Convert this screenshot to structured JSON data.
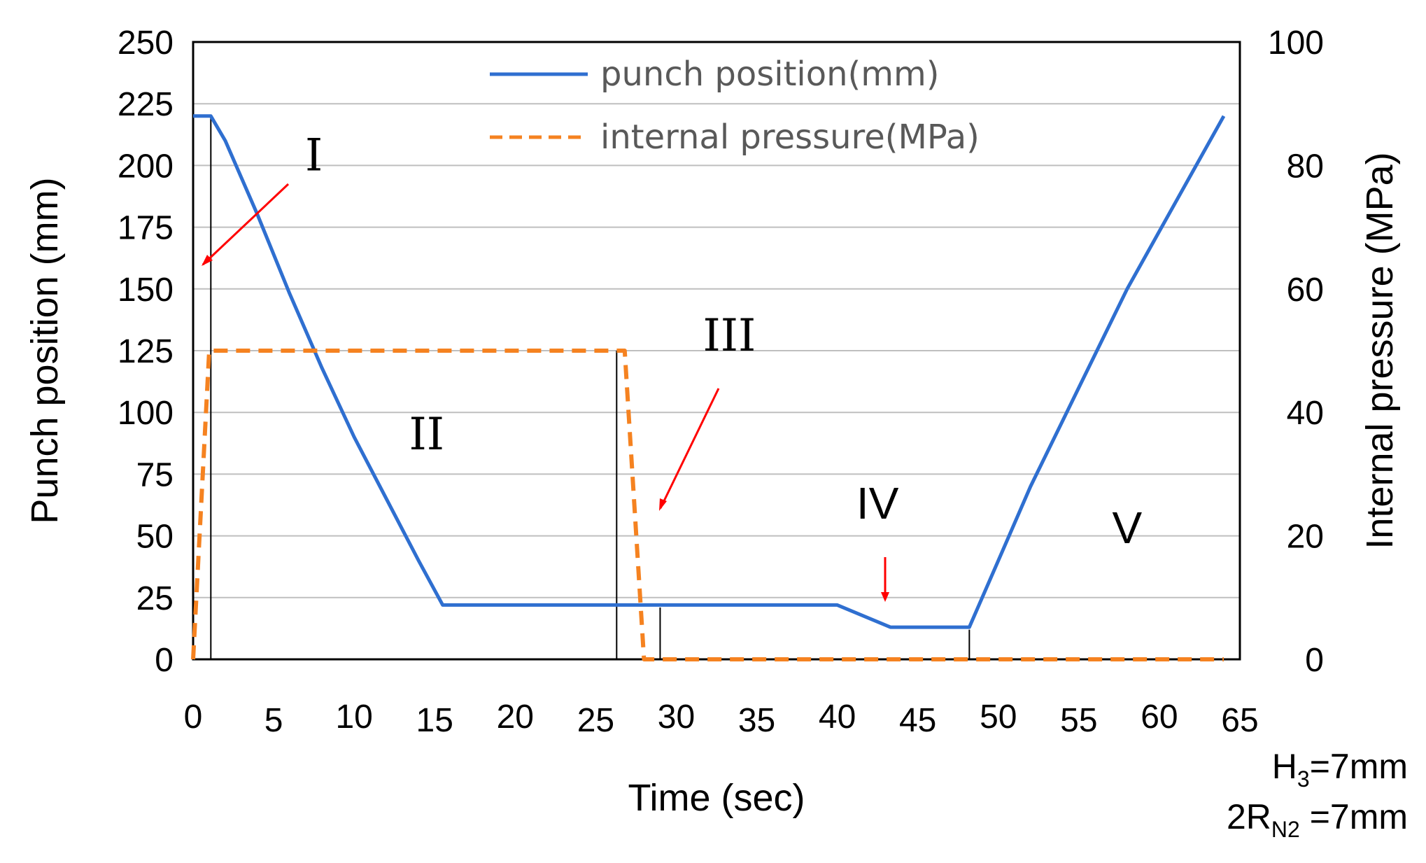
{
  "chart_data": {
    "type": "line",
    "title": "",
    "xlabel": "Time (sec)",
    "ylabel": "Punch position (mm)",
    "y2label": "Internal pressure (MPa)",
    "xlim": [
      0,
      65
    ],
    "ylim": [
      0,
      250
    ],
    "y2lim": [
      0,
      100
    ],
    "xticks": [
      "0",
      "5",
      "10",
      "15",
      "20",
      "25",
      "30",
      "35",
      "40",
      "45",
      "50",
      "55",
      "60",
      "65"
    ],
    "yticks": [
      "0",
      "25",
      "50",
      "75",
      "100",
      "125",
      "150",
      "175",
      "200",
      "225",
      "250"
    ],
    "y2ticks": [
      "0",
      "20",
      "40",
      "60",
      "80",
      "100"
    ],
    "grid": true,
    "legend_position": "top-center",
    "series": [
      {
        "name": "punch position(mm)",
        "axis": "left",
        "style": "solid",
        "color": "#2F6FD0",
        "x": [
          0,
          1.1,
          2,
          4,
          6,
          8,
          10,
          12,
          14,
          15.5,
          16.3,
          20,
          25,
          30,
          35,
          40,
          43.3,
          46,
          48.2,
          50,
          52,
          55,
          58,
          61,
          64
        ],
        "y": [
          220,
          220,
          210,
          180,
          148,
          118,
          90,
          65,
          40,
          22,
          22,
          22,
          22,
          22,
          22,
          22,
          13,
          13,
          13,
          40,
          70,
          110,
          150,
          185,
          220
        ]
      },
      {
        "name": "internal pressure(MPa)",
        "axis": "right",
        "style": "dashed",
        "color": "#F58220",
        "x": [
          0,
          1.0,
          26.8,
          28.0,
          64
        ],
        "y": [
          0,
          50,
          50,
          0,
          0
        ]
      }
    ],
    "phase_markers": [
      1.1,
      26.3,
      29.0,
      48.2
    ],
    "annotations": [
      {
        "label": "I",
        "x": 7.5,
        "y": 198
      },
      {
        "label": "II",
        "x": 14.5,
        "y": 85
      },
      {
        "label": "III",
        "x": 33.3,
        "y": 125
      },
      {
        "label": "IV",
        "x": 42.5,
        "y": 57
      },
      {
        "label": "V",
        "x": 58,
        "y": 47
      }
    ],
    "notes": [
      {
        "base": "H",
        "sub": "3",
        "rest": "=7mm"
      },
      {
        "base": "2R",
        "sub": "N2",
        "rest": " =7mm"
      }
    ]
  }
}
